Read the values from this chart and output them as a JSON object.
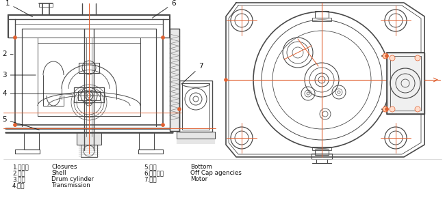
{
  "bg_color": "#ffffff",
  "line_color": "#4a4a4a",
  "red_color": "#e06030",
  "gray_color": "#888888",
  "dark_color": "#222222",
  "legend_items_col1": [
    {
      "num": "1.",
      "zh": "密封盖",
      "en": "Closures"
    },
    {
      "num": "2.",
      "zh": "外壳",
      "en": "Shell"
    },
    {
      "num": "3.",
      "zh": "转鼓",
      "en": "Drum cylinder"
    },
    {
      "num": "4.",
      "zh": "传动",
      "en": "Transmission"
    }
  ],
  "legend_items_col2": [
    {
      "num": "5.",
      "zh": "底板",
      "en": "Bottom"
    },
    {
      "num": "6.",
      "zh": "开盖机构",
      "en": "Off Cap agencies"
    },
    {
      "num": "7.",
      "zh": "电机",
      "en": "Motor"
    }
  ],
  "figsize": [
    6.5,
    2.93
  ],
  "dpi": 100
}
